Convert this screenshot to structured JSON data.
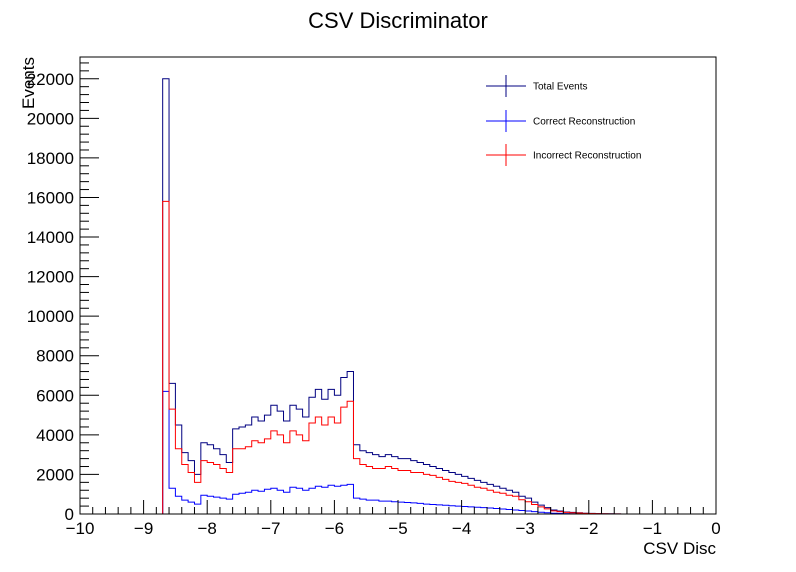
{
  "chart_data": {
    "type": "histogram",
    "title": "CSV Discriminator",
    "xlabel": "CSV Disc",
    "ylabel": "Events",
    "xlim": [
      -10,
      0
    ],
    "ylim": [
      0,
      23100
    ],
    "bin_width": 0.1,
    "x_ticks": [
      -10,
      -9,
      -8,
      -7,
      -6,
      -5,
      -4,
      -3,
      -2,
      -1,
      0
    ],
    "x_tick_labels": [
      "−10",
      "−9",
      "−8",
      "−7",
      "−6",
      "−5",
      "−4",
      "−3",
      "−2",
      "−1",
      "0"
    ],
    "y_ticks": [
      0,
      2000,
      4000,
      6000,
      8000,
      10000,
      12000,
      14000,
      16000,
      18000,
      20000,
      22000
    ],
    "y_tick_labels": [
      "0",
      "2000",
      "4000",
      "6000",
      "8000",
      "10000",
      "12000",
      "14000",
      "16000",
      "18000",
      "20000",
      "22000"
    ],
    "grid": false,
    "legend_position": "top-right",
    "series": [
      {
        "name": "Total Events",
        "color": "#000080",
        "x_start": -8.7,
        "values": [
          22000,
          6600,
          4500,
          3100,
          2700,
          2000,
          3600,
          3500,
          3300,
          3000,
          2600,
          4300,
          4400,
          4500,
          4900,
          4700,
          5000,
          5500,
          5200,
          4700,
          5500,
          5300,
          4900,
          5900,
          6300,
          5800,
          6300,
          6000,
          6900,
          7200,
          3500,
          3200,
          3100,
          3000,
          2900,
          3000,
          2900,
          2800,
          2800,
          2700,
          2600,
          2500,
          2400,
          2300,
          2200,
          2100,
          2000,
          1900,
          1800,
          1700,
          1600,
          1500,
          1400,
          1300,
          1200,
          1100,
          900,
          800,
          600,
          450,
          320,
          200,
          150,
          100,
          80,
          60,
          40,
          30,
          20,
          15,
          10,
          5,
          3,
          2,
          1,
          1,
          0,
          0,
          0,
          0,
          0,
          0,
          0,
          0,
          0,
          0,
          0
        ]
      },
      {
        "name": "Correct Reconstruction",
        "color": "#0000ff",
        "x_start": -8.7,
        "values": [
          6200,
          1300,
          900,
          700,
          600,
          500,
          950,
          900,
          850,
          800,
          750,
          1000,
          1050,
          1100,
          1200,
          1150,
          1250,
          1300,
          1200,
          1100,
          1350,
          1300,
          1200,
          1300,
          1400,
          1350,
          1450,
          1400,
          1450,
          1500,
          800,
          750,
          700,
          700,
          650,
          650,
          620,
          600,
          580,
          560,
          540,
          500,
          480,
          460,
          440,
          420,
          400,
          380,
          360,
          340,
          320,
          300,
          280,
          250,
          230,
          200,
          180,
          150,
          120,
          90,
          60,
          40,
          30,
          20,
          15,
          10,
          8,
          6,
          4,
          3,
          2,
          1,
          1,
          0,
          0,
          0,
          0,
          0,
          0,
          0,
          0,
          0,
          0,
          0,
          0,
          0,
          0
        ]
      },
      {
        "name": "Incorrect Reconstruction",
        "color": "#ff0000",
        "x_start": -8.7,
        "values": [
          15800,
          5300,
          3300,
          2500,
          2100,
          1600,
          2700,
          2600,
          2500,
          2300,
          2100,
          3300,
          3300,
          3400,
          3700,
          3600,
          3800,
          4200,
          4000,
          3600,
          4200,
          4000,
          3700,
          4600,
          4900,
          4500,
          4900,
          4600,
          5400,
          5700,
          2800,
          2500,
          2400,
          2300,
          2300,
          2400,
          2300,
          2200,
          2200,
          2100,
          2100,
          2000,
          1950,
          1850,
          1750,
          1650,
          1600,
          1550,
          1450,
          1350,
          1300,
          1200,
          1100,
          1050,
          950,
          900,
          720,
          620,
          480,
          360,
          260,
          160,
          120,
          80,
          65,
          50,
          32,
          24,
          16,
          12,
          8,
          4,
          2,
          2,
          1,
          1,
          0,
          0,
          0,
          0,
          0,
          0,
          0,
          0,
          0,
          0,
          0
        ]
      }
    ]
  }
}
